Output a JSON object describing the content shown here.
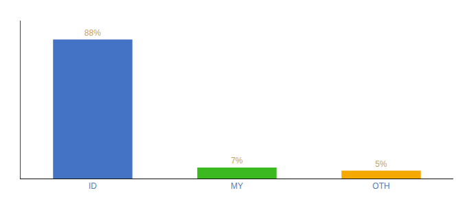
{
  "chart_data": {
    "type": "bar",
    "categories": [
      "ID",
      "MY",
      "OTH"
    ],
    "values": [
      88,
      7,
      5
    ],
    "value_labels": [
      "88%",
      "7%",
      "5%"
    ],
    "data_labels": true,
    "colors": [
      "#4472C4",
      "#3CB820",
      "#F4A800"
    ],
    "ylim": [
      0,
      100
    ],
    "grid": false,
    "tick_labels": "x"
  }
}
